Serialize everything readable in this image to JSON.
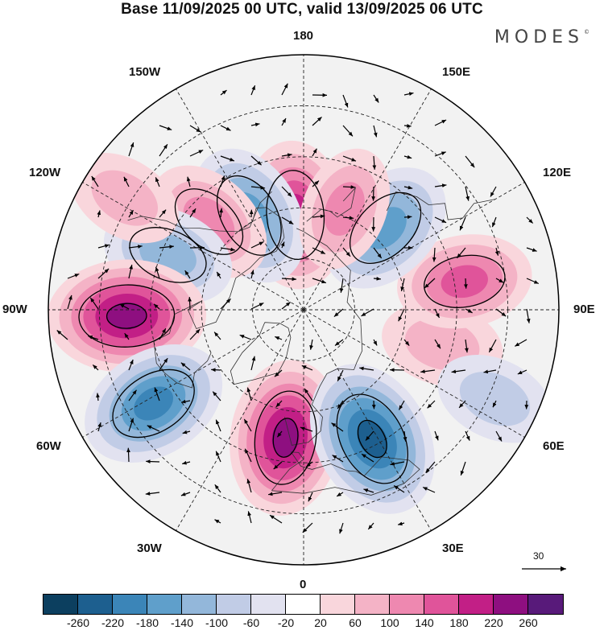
{
  "title": "Base 11/09/2025 00 UTC, valid 13/09/2025 06 UTC",
  "brand": "MODES",
  "brand_mark": "©",
  "longitude_labels": {
    "n180": "180",
    "w150": "150W",
    "e150": "150E",
    "w120": "120W",
    "e120": "120E",
    "w90": "90W",
    "e90": "90E",
    "w60": "60W",
    "e60": "60E",
    "w30": "30W",
    "e30": "30E",
    "s0": "0"
  },
  "reference_vector": {
    "label": "30"
  },
  "colorbar": {
    "colors": [
      "#0c3f5f",
      "#1d5f8f",
      "#3b85b8",
      "#5f9fcb",
      "#93b7da",
      "#c1cce6",
      "#e2e2f0",
      "#ffffff",
      "#f9d6dc",
      "#f4b3c6",
      "#ee88b0",
      "#e0549a",
      "#c21f86",
      "#8e0f80",
      "#581a7a"
    ],
    "labels": [
      "-260",
      "-220",
      "-180",
      "-140",
      "-100",
      "-60",
      "-20",
      "20",
      "60",
      "100",
      "140",
      "180",
      "220",
      "260"
    ]
  },
  "anomaly_centers": [
    {
      "id": "h1",
      "lon": -175,
      "lat": 62,
      "value": 190
    },
    {
      "id": "l1",
      "lon": -150,
      "lat": 58,
      "value": -170
    },
    {
      "id": "h2",
      "lon": -133,
      "lat": 52,
      "value": 130
    },
    {
      "id": "l2",
      "lon": -112,
      "lat": 47,
      "value": -130
    },
    {
      "id": "h3",
      "lon": -88,
      "lat": 38,
      "value": 230
    },
    {
      "id": "l3",
      "lon": -58,
      "lat": 38,
      "value": -190
    },
    {
      "id": "h4",
      "lon": -8,
      "lat": 52,
      "value": 220
    },
    {
      "id": "l4",
      "lon": 28,
      "lat": 47,
      "value": -230
    },
    {
      "id": "h5",
      "lon": 76,
      "lat": 48,
      "value": 90
    },
    {
      "id": "h6",
      "lon": 100,
      "lat": 42,
      "value": 140
    },
    {
      "id": "l5",
      "lon": 135,
      "lat": 56,
      "value": -160
    },
    {
      "id": "h7",
      "lon": 158,
      "lat": 58,
      "value": 100
    },
    {
      "id": "l6",
      "lon": 65,
      "lat": 28,
      "value": -80
    },
    {
      "id": "h8",
      "lon": -122,
      "lat": 28,
      "value": 70
    }
  ]
}
